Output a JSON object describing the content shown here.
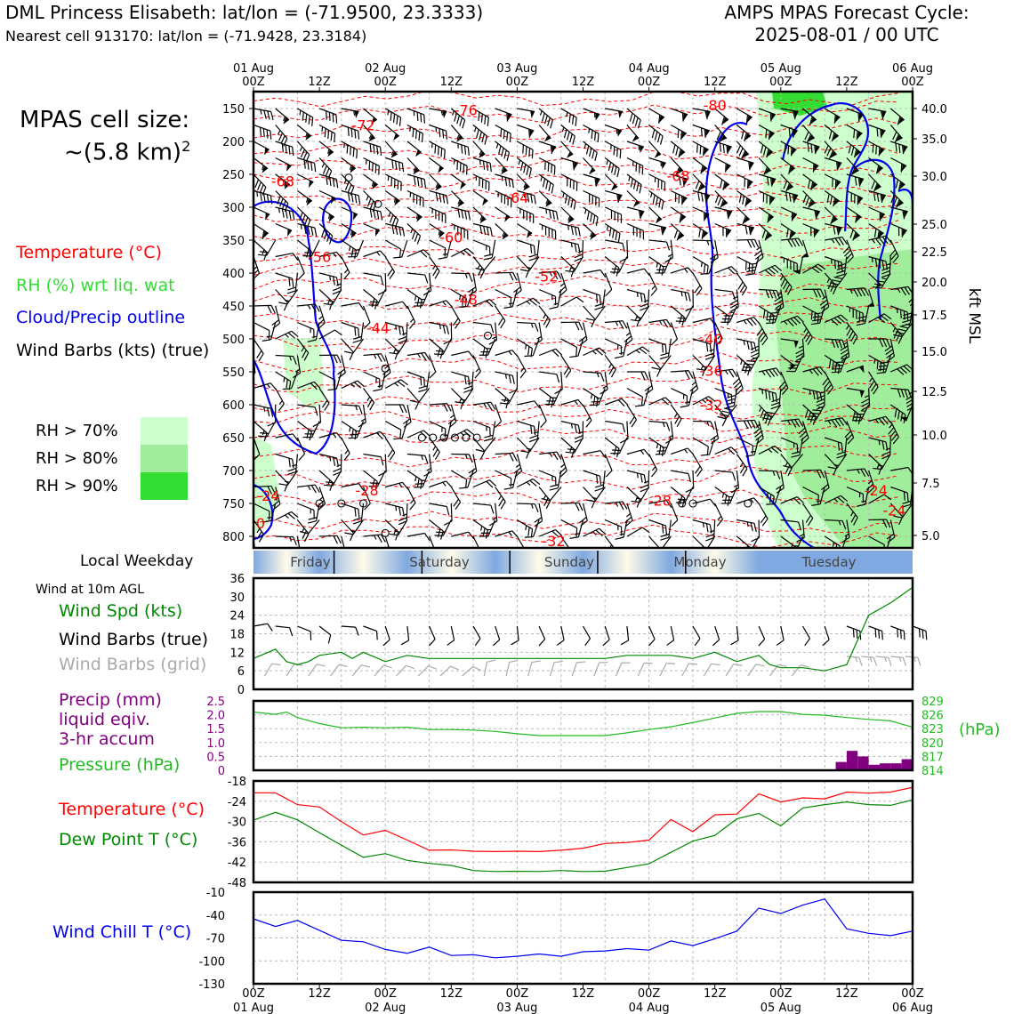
{
  "header": {
    "title": "DML Princess Elisabeth: lat/lon = (-71.9500, 23.3333)",
    "nearest_cell": "Nearest cell 913170: lat/lon = (-71.9428, 23.3184)",
    "cycle_line1": "AMPS MPAS Forecast Cycle:",
    "cycle_line2": "2025-08-01 / 00 UTC"
  },
  "legend": {
    "cell_size_line1": "MPAS cell size:",
    "cell_size_line2": "~(5.8 km)",
    "cell_size_exp": "2",
    "temperature": "Temperature (°C)",
    "rh": "RH (%) wrt liq. wat",
    "cloud": "Cloud/Precip outline",
    "barbs": "Wind Barbs (kts) (true)",
    "rh_levels": [
      "RH > 70%",
      "RH > 80%",
      "RH > 90%"
    ],
    "rh_colors": [
      "#ccffcc",
      "#a0ee9c",
      "#33dd33"
    ],
    "local_weekday": "Local Weekday",
    "wind_10m": "Wind at 10m AGL",
    "wind_spd": "Wind Spd (kts)",
    "wind_barbs_true": "Wind Barbs (true)",
    "wind_barbs_grid": "Wind Barbs (grid)",
    "precip_line1": "Precip (mm)",
    "precip_line2": "liquid eqiv.",
    "precip_line3": "3-hr accum",
    "pressure": "Pressure (hPa)",
    "temp2": "Temperature (°C)",
    "dewpoint": "Dew Point T (°C)",
    "windchill": "Wind Chill T (°C)"
  },
  "colors": {
    "temperature": "#ff0000",
    "rh": "#33dd33",
    "cloud": "#0000ee",
    "wind_speed": "#008800",
    "grid_barbs": "#aaaaaa",
    "precip": "#800080",
    "pressure": "#22bb22",
    "dewpoint": "#008800",
    "windchill": "#0000ee"
  },
  "axes": {
    "top_dates": [
      "01 Aug",
      "02 Aug",
      "03 Aug",
      "04 Aug",
      "05 Aug",
      "06 Aug"
    ],
    "time_ticks": [
      "00Z",
      "12Z",
      "00Z",
      "12Z",
      "00Z",
      "12Z",
      "00Z",
      "12Z",
      "00Z",
      "12Z",
      "00Z"
    ],
    "pressure_levels": [
      "150",
      "200",
      "250",
      "300",
      "350",
      "400",
      "450",
      "500",
      "550",
      "600",
      "650",
      "700",
      "750",
      "800"
    ],
    "kft_levels": [
      "40.0",
      "35.0",
      "30.0",
      "25.0",
      "22.5",
      "20.0",
      "17.5",
      "15.0",
      "12.5",
      "10.0",
      "7.5",
      "5.0"
    ],
    "kft_label": "kft MSL",
    "weekdays": [
      "Friday",
      "Saturday",
      "Sunday",
      "Monday",
      "Tuesday"
    ],
    "date_labels": [
      "01 Aug",
      "02 Aug",
      "03 Aug",
      "04 Aug",
      "05 Aug",
      "06 Aug"
    ],
    "wind_ticks": [
      "0",
      "6",
      "12",
      "18",
      "24",
      "30",
      "36"
    ],
    "precip_ticks": [
      "0",
      "0.5",
      "1.0",
      "1.5",
      "2.0",
      "2.5"
    ],
    "pressure_ticks": [
      "814",
      "817",
      "820",
      "823",
      "826",
      "829"
    ],
    "pressure_unit": "(hPa)",
    "temp_ticks": [
      "-48",
      "-42",
      "-36",
      "-30",
      "-24",
      "-18"
    ],
    "chill_ticks": [
      "-130",
      "-100",
      "-70",
      "-40",
      "-10"
    ]
  },
  "chart_data": [
    {
      "type": "line",
      "title": "Time-height section: temperature isotherms, RH, cloud outline, wind barbs",
      "ylabel": "Pressure (hPa)",
      "ylim": [
        820,
        140
      ],
      "isotherm_labels": [
        {
          "t": 58,
          "p": 152,
          "label": "-76"
        },
        {
          "t": 126,
          "p": 148,
          "label": "-80"
        },
        {
          "t": 30,
          "p": 175,
          "label": "-72"
        },
        {
          "t": 8,
          "p": 260,
          "label": "-68"
        },
        {
          "t": 116,
          "p": 252,
          "label": "-68"
        },
        {
          "t": 72,
          "p": 285,
          "label": "-64"
        },
        {
          "t": 54,
          "p": 345,
          "label": "-60"
        },
        {
          "t": 18,
          "p": 375,
          "label": "-56"
        },
        {
          "t": 80,
          "p": 405,
          "label": "-52"
        },
        {
          "t": 58,
          "p": 440,
          "label": "-48"
        },
        {
          "t": 34,
          "p": 483,
          "label": "-44"
        },
        {
          "t": 125,
          "p": 500,
          "label": "-40"
        },
        {
          "t": 125,
          "p": 548,
          "label": "-36"
        },
        {
          "t": 125,
          "p": 600,
          "label": "-32"
        },
        {
          "t": 31,
          "p": 730,
          "label": "-28"
        },
        {
          "t": 111,
          "p": 745,
          "label": "-28"
        },
        {
          "t": 4,
          "p": 738,
          "label": "-24"
        },
        {
          "t": 170,
          "p": 730,
          "label": "-24"
        },
        {
          "t": 175,
          "p": 760,
          "label": "-24"
        },
        {
          "t": 0,
          "p": 780,
          "label": "-20"
        },
        {
          "t": 82,
          "p": 808,
          "label": "-32"
        }
      ],
      "calm_points": [
        {
          "t": 26,
          "p": 255
        },
        {
          "t": 34,
          "p": 295
        },
        {
          "t": 36,
          "p": 545
        },
        {
          "t": 46,
          "p": 650
        },
        {
          "t": 49,
          "p": 650
        },
        {
          "t": 52,
          "p": 650
        },
        {
          "t": 55,
          "p": 650
        },
        {
          "t": 58,
          "p": 650
        },
        {
          "t": 61,
          "p": 650
        },
        {
          "t": 64,
          "p": 495
        },
        {
          "t": 18,
          "p": 750
        },
        {
          "t": 24,
          "p": 750
        },
        {
          "t": 30,
          "p": 750
        },
        {
          "t": 120,
          "p": 750
        },
        {
          "t": 117,
          "p": 750
        },
        {
          "t": 135,
          "p": 750
        },
        {
          "t": 36,
          "p": 795
        }
      ]
    },
    {
      "type": "line",
      "title": "Wind at 10m AGL",
      "ylabel": "Wind Spd (kts)",
      "ylim": [
        0,
        36
      ],
      "x_hours": [
        0,
        6,
        9,
        12,
        15,
        18,
        24,
        27,
        30,
        36,
        42,
        48,
        54,
        60,
        72,
        78,
        84,
        90,
        93,
        96,
        102,
        108,
        114,
        120,
        126,
        132,
        138,
        141,
        144,
        150,
        156,
        162,
        168,
        174,
        180
      ],
      "series": [
        {
          "name": "Wind Spd (kts)",
          "values": [
            10,
            13,
            9,
            8,
            9,
            11,
            12,
            10,
            12,
            9,
            11,
            10,
            10,
            10,
            10,
            10,
            10,
            10,
            10,
            10,
            11,
            11,
            11,
            10,
            12,
            9,
            11,
            8,
            7,
            7,
            6,
            8,
            24,
            28,
            33
          ]
        }
      ]
    },
    {
      "type": "bar",
      "title": "Precip (mm) 3-hr accum / Pressure (hPa)",
      "precip_x_hours": [
        159,
        162,
        165,
        168,
        171,
        174,
        177,
        180
      ],
      "precip_values": [
        0,
        0.3,
        0.7,
        0.5,
        0.2,
        0.25,
        0.25,
        0.4
      ],
      "pressure_x_hours": [
        0,
        6,
        9,
        12,
        18,
        24,
        30,
        36,
        42,
        48,
        54,
        60,
        66,
        72,
        78,
        84,
        90,
        96,
        102,
        108,
        114,
        120,
        126,
        132,
        138,
        144,
        150,
        156,
        162,
        168,
        174,
        180
      ],
      "series": [
        {
          "name": "Pressure (hPa)",
          "values": [
            826.6,
            826.1,
            826.6,
            825.4,
            824.1,
            823.2,
            823.3,
            823.2,
            823.3,
            822.8,
            822.8,
            822.7,
            822.4,
            821.9,
            821.5,
            821.5,
            821.5,
            821.5,
            822.1,
            822.8,
            823.4,
            824.3,
            825.3,
            826.3,
            826.7,
            826.7,
            826.1,
            825.9,
            825.4,
            825.0,
            824.7,
            823.3
          ]
        }
      ],
      "ylim_precip": [
        0,
        2.5
      ],
      "ylim_pressure": [
        814,
        829
      ]
    },
    {
      "type": "line",
      "title": "Temperature / Dew Point",
      "ylim": [
        -48,
        -18
      ],
      "x_hours": [
        0,
        6,
        12,
        18,
        24,
        30,
        36,
        42,
        48,
        54,
        60,
        66,
        72,
        78,
        84,
        90,
        96,
        102,
        108,
        114,
        120,
        126,
        132,
        138,
        144,
        150,
        156,
        162,
        168,
        174,
        180
      ],
      "series": [
        {
          "name": "Temperature (°C)",
          "values": [
            -21.5,
            -21.5,
            -25,
            -25.7,
            -30,
            -34,
            -32.6,
            -35.5,
            -38.5,
            -38.4,
            -38.8,
            -38.9,
            -38.8,
            -38.9,
            -38.5,
            -37.9,
            -36.5,
            -36.2,
            -35.5,
            -29.4,
            -33,
            -28,
            -27.8,
            -21.8,
            -24.2,
            -23,
            -23.3,
            -21.3,
            -21.6,
            -21.3,
            -19.9
          ]
        },
        {
          "name": "Dew Point T (°C)",
          "values": [
            -29.6,
            -27.3,
            -29.5,
            -33.3,
            -37,
            -40.6,
            -39.5,
            -41.5,
            -42.4,
            -43,
            -44.5,
            -44.8,
            -44.7,
            -44.8,
            -44.5,
            -44.8,
            -44.7,
            -43.6,
            -42.5,
            -39.1,
            -35.8,
            -34.1,
            -29.2,
            -27.6,
            -31.3,
            -26,
            -25,
            -24.2,
            -25,
            -25.2,
            -23.6
          ]
        }
      ]
    },
    {
      "type": "line",
      "title": "Wind Chill T",
      "ylim": [
        -130,
        -10
      ],
      "x_hours": [
        0,
        6,
        12,
        18,
        24,
        30,
        36,
        42,
        48,
        54,
        60,
        66,
        72,
        78,
        84,
        90,
        96,
        102,
        108,
        114,
        120,
        126,
        132,
        138,
        144,
        150,
        156,
        162,
        168,
        174,
        180
      ],
      "series": [
        {
          "name": "Wind Chill T (°C)",
          "values": [
            -45,
            -55,
            -47,
            -60,
            -73,
            -75,
            -85,
            -90,
            -82,
            -93,
            -92,
            -96,
            -94,
            -91,
            -94,
            -88,
            -87,
            -84,
            -86,
            -74,
            -80,
            -71,
            -61,
            -31,
            -38,
            -27,
            -19,
            -58,
            -64,
            -67,
            -61
          ]
        }
      ]
    }
  ]
}
